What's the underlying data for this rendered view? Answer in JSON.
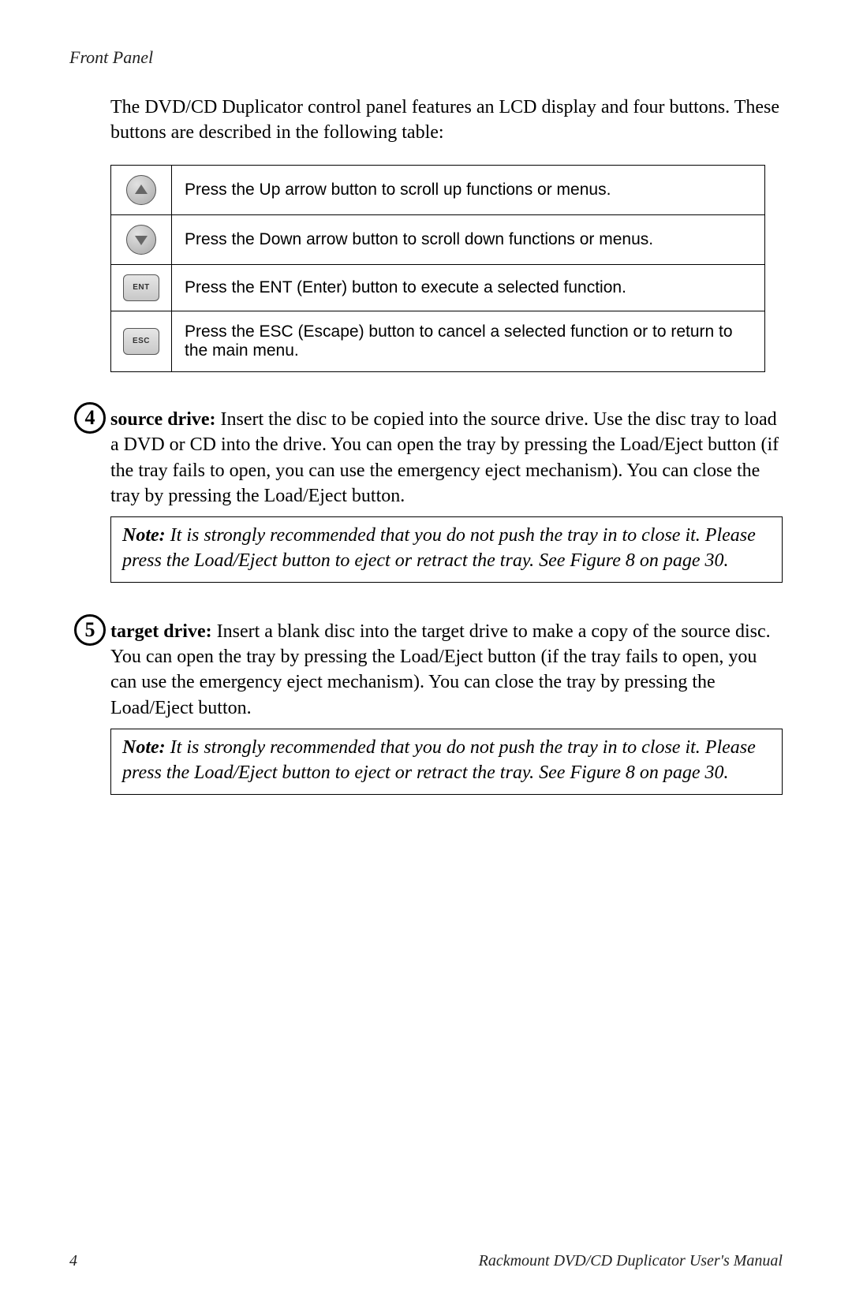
{
  "header": {
    "section_title": "Front Panel"
  },
  "intro_text": "The DVD/CD Duplicator control panel features an LCD display and four buttons. These buttons are described in the following table:",
  "button_table": {
    "rows": [
      {
        "icon": "triangle-up",
        "icon_label": "",
        "description": "Press the Up arrow button to scroll up functions or menus."
      },
      {
        "icon": "triangle-down",
        "icon_label": "",
        "description": "Press the Down arrow button to scroll down functions or menus."
      },
      {
        "icon": "rect",
        "icon_label": "ENT",
        "description": "Press the ENT (Enter) button to execute a selected function."
      },
      {
        "icon": "rect",
        "icon_label": "ESC",
        "description": "Press the ESC (Escape) button to cancel a selected function or to return to the main menu."
      }
    ],
    "border_color": "#000000",
    "font_family_desc": "Arial",
    "font_size_desc_pt": 16,
    "round_button_bg": "#c0c0c0",
    "rect_button_bg": "#d8d8d8"
  },
  "items": [
    {
      "number": "4",
      "label": "source drive:",
      "body": " Insert the disc to be copied into the source drive. Use the disc tray to load a DVD or CD into the drive. You can open the tray by pressing the Load/Eject button (if the tray fails to open, you can use the emergency eject mechanism). You can close the tray by pressing the Load/Eject button.",
      "note_label": "Note:",
      "note_body": " It is strongly recommended that you do not push the tray in to close it. Please press the Load/Eject button to eject or retract the tray. See Figure 8 on page 30."
    },
    {
      "number": "5",
      "label": "target drive:",
      "body": " Insert a blank disc into the target drive to make a copy of the source disc. You can open the tray by pressing the Load/Eject button (if the tray fails to open, you can use the emergency eject mechanism). You can close the tray by pressing the Load/Eject button.",
      "note_label": "Note:",
      "note_body": " It is strongly recommended that you do not push the tray in to close it. Please press the Load/Eject button to eject or retract the tray. See Figure 8 on page 30."
    }
  ],
  "footer": {
    "page_number": "4",
    "manual_title": "Rackmount DVD/CD Duplicator User's Manual"
  },
  "typography": {
    "body_font": "Times New Roman",
    "body_font_size_pt": 18,
    "header_font_size_pt": 16,
    "note_font_style": "italic",
    "text_color": "#000000",
    "background_color": "#ffffff"
  }
}
